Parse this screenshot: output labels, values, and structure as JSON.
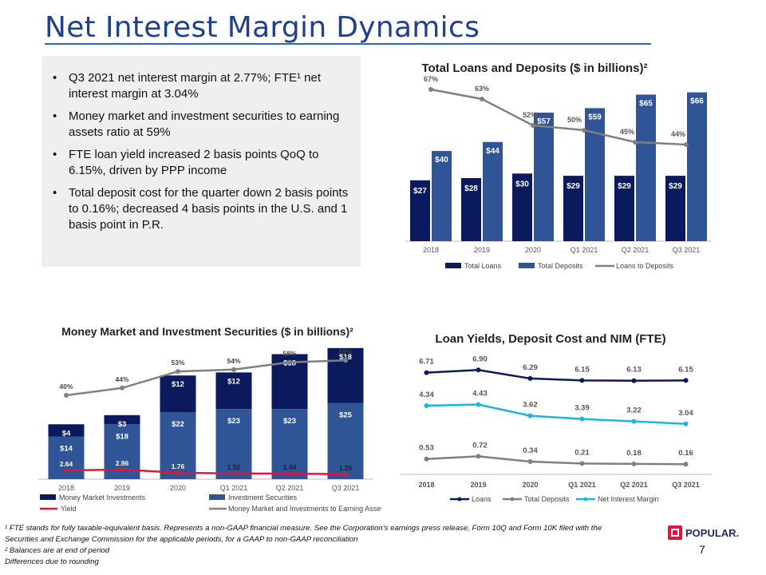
{
  "slide": {
    "title": "Net Interest Margin Dynamics",
    "page_number": "7",
    "logo_text": "POPULAR."
  },
  "bullets": [
    {
      "text": "Q3 2021 net interest margin at 2.77%; FTE¹ net interest margin at 3.04%"
    },
    {
      "text": "Money market and investment securities to earning assets ratio at 59%"
    },
    {
      "text": "FTE loan yield increased 2 basis points QoQ to 6.15%, driven by PPP income"
    },
    {
      "text": "Total deposit cost for the quarter down 2 basis points to 0.16%;  decreased 4 basis points in the U.S. and 1 basis point in P.R."
    }
  ],
  "footnotes": {
    "fn1": "¹ FTE stands for fully taxable-equivalent basis. Represents a non-GAAP financial measure. See the Corporation’s earnings press release, Form 10Q and Form 10K filed with the Securities and Exchange Commission for the applicable periods, for a GAAP to non-GAAP reconciliation",
    "fn2": " ² Balances are at end of period",
    "fn3": "Differences due to rounding"
  },
  "colors": {
    "navy": "#0a1a5c",
    "blue": "#2f5597",
    "gray": "#808080",
    "cyan": "#1fb4e0",
    "red": "#e0153a"
  },
  "chart_data": [
    {
      "type": "bar",
      "title": "Total Loans and Deposits ($ in billions)²",
      "categories": [
        "2018",
        "2019",
        "2020",
        "Q1 2021",
        "Q2 2021",
        "Q3 2021"
      ],
      "series": [
        {
          "name": "Total Loans",
          "kind": "bar",
          "values": [
            27,
            28,
            30,
            29,
            29,
            29
          ],
          "labels": [
            "$27",
            "$28",
            "$30",
            "$29",
            "$29",
            "$29"
          ]
        },
        {
          "name": "Total Deposits",
          "kind": "bar",
          "values": [
            40,
            44,
            57,
            59,
            65,
            66
          ],
          "labels": [
            "$40",
            "$44",
            "$57",
            "$59",
            "$65",
            "$66"
          ]
        },
        {
          "name": "Loans to Deposits",
          "kind": "line",
          "values": [
            67,
            63,
            52,
            50,
            45,
            44
          ],
          "labels": [
            "67%",
            "63%",
            "52%",
            "50%",
            "45%",
            "44%"
          ]
        }
      ],
      "legend": "bottom"
    },
    {
      "type": "bar",
      "stacked": true,
      "title": "Money Market and Investment Securities ($ in billions)²",
      "categories": [
        "2018",
        "2019",
        "2020",
        "Q1 2021",
        "Q2 2021",
        "Q3 2021"
      ],
      "series": [
        {
          "name": "Investment Securities",
          "kind": "bar",
          "values": [
            14,
            18,
            22,
            23,
            23,
            25
          ],
          "labels": [
            "$14",
            "$18",
            "$22",
            "$23",
            "$23",
            "$25"
          ]
        },
        {
          "name": "Money Market Investments",
          "kind": "bar",
          "values": [
            4,
            3,
            12,
            12,
            18,
            18
          ],
          "labels": [
            "$4",
            "$3",
            "$12",
            "$12",
            "$18",
            "$18"
          ]
        },
        {
          "name": "Money Market and Investments to Earning Assets",
          "kind": "line",
          "values": [
            40,
            44,
            53,
            54,
            58,
            59
          ],
          "labels": [
            "40%",
            "44%",
            "53%",
            "54%",
            "58%",
            "59%"
          ]
        },
        {
          "name": "Yield",
          "kind": "line",
          "values": [
            2.64,
            2.96,
            1.76,
            1.52,
            1.44,
            1.25
          ],
          "labels": [
            "2.64",
            "2.96",
            "1.76",
            "1.52",
            "1.44",
            "1.25"
          ]
        }
      ],
      "legend": "bottom"
    },
    {
      "type": "line",
      "title": "Loan Yields, Deposit Cost and NIM (FTE)",
      "categories": [
        "2018",
        "2019",
        "2020",
        "Q1 2021",
        "Q2 2021",
        "Q3 2021"
      ],
      "series": [
        {
          "name": "Loans",
          "values": [
            6.71,
            6.9,
            6.29,
            6.15,
            6.13,
            6.15
          ],
          "labels": [
            "6.71",
            "6.90",
            "6.29",
            "6.15",
            "6.13",
            "6.15"
          ]
        },
        {
          "name": "Total Deposits",
          "values": [
            0.53,
            0.72,
            0.34,
            0.21,
            0.18,
            0.16
          ],
          "labels": [
            "0.53",
            "0.72",
            "0.34",
            "0.21",
            "0.18",
            "0.16"
          ]
        },
        {
          "name": "Net Interest Margin",
          "values": [
            4.34,
            4.43,
            3.62,
            3.39,
            3.22,
            3.04
          ],
          "labels": [
            "4.34",
            "4.43",
            "3.62",
            "3.39",
            "3.22",
            "3.04"
          ]
        }
      ],
      "legend": "bottom"
    }
  ]
}
